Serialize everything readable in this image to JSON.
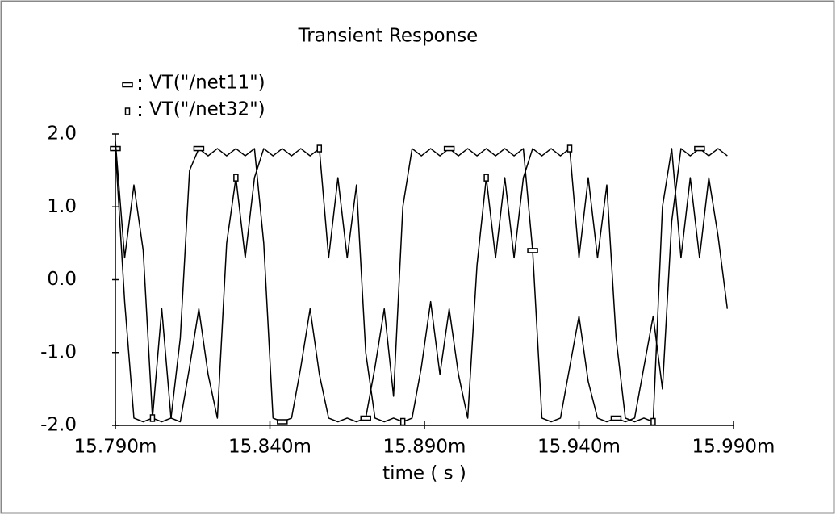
{
  "chart_data": {
    "type": "line",
    "title": "Transient Response",
    "x_label": "time ( s )",
    "x": [
      0.01579,
      0.015793,
      0.015796,
      0.015799,
      0.015802,
      0.015805,
      0.015808,
      0.015811,
      0.015814,
      0.015817,
      0.01582,
      0.015823,
      0.015826,
      0.015829,
      0.015832,
      0.015835,
      0.015838,
      0.015841,
      0.015844,
      0.015847,
      0.01585,
      0.015853,
      0.015856,
      0.015859,
      0.015862,
      0.015865,
      0.015868,
      0.015871,
      0.015874,
      0.015877,
      0.01588,
      0.015883,
      0.015886,
      0.015889,
      0.015892,
      0.015895,
      0.015898,
      0.015901,
      0.015904,
      0.015907,
      0.01591,
      0.015913,
      0.015916,
      0.015919,
      0.015922,
      0.015925,
      0.015928,
      0.015931,
      0.015934,
      0.015937,
      0.01594,
      0.015943,
      0.015946,
      0.015949,
      0.015952,
      0.015955,
      0.015958,
      0.015961,
      0.015964,
      0.015967,
      0.01597,
      0.015973,
      0.015976,
      0.015979,
      0.015982,
      0.015985,
      0.015988
    ],
    "series": [
      {
        "name": "VT(\"/net11\")",
        "color": "#000000",
        "values": [
          1.8,
          -0.3,
          -1.9,
          -1.95,
          -1.9,
          -1.95,
          -1.9,
          -0.8,
          1.5,
          1.8,
          1.7,
          1.8,
          1.7,
          1.8,
          1.7,
          1.8,
          0.5,
          -1.9,
          -1.95,
          -1.9,
          -1.2,
          -0.4,
          -1.3,
          -1.9,
          -1.95,
          -1.9,
          -1.95,
          -1.9,
          -1.2,
          -0.4,
          -1.6,
          1.0,
          1.8,
          1.7,
          1.8,
          1.7,
          1.8,
          1.7,
          1.8,
          1.7,
          1.8,
          1.7,
          1.8,
          1.7,
          1.8,
          0.4,
          -1.9,
          -1.95,
          -1.9,
          -1.2,
          -0.5,
          -1.4,
          -1.9,
          -1.95,
          -1.9,
          -1.95,
          -1.9,
          -1.2,
          -0.5,
          -1.5,
          0.8,
          1.8,
          1.7,
          1.8,
          1.7,
          1.8,
          1.7
        ]
      },
      {
        "name": "VT(\"/net32\")",
        "color": "#000000",
        "values": [
          1.9,
          0.3,
          1.3,
          0.4,
          -1.9,
          -0.4,
          -1.9,
          -1.95,
          -1.2,
          -0.4,
          -1.3,
          -1.9,
          0.5,
          1.4,
          0.3,
          1.4,
          1.8,
          1.7,
          1.8,
          1.7,
          1.8,
          1.7,
          1.8,
          0.3,
          1.4,
          0.3,
          1.3,
          -1.0,
          -1.9,
          -1.95,
          -1.9,
          -1.95,
          -1.9,
          -1.2,
          -0.3,
          -1.3,
          -0.4,
          -1.3,
          -1.9,
          0.2,
          1.4,
          0.3,
          1.4,
          0.3,
          1.4,
          1.8,
          1.7,
          1.8,
          1.7,
          1.8,
          0.3,
          1.4,
          0.3,
          1.3,
          -0.8,
          -1.9,
          -1.95,
          -1.9,
          -1.95,
          1.0,
          1.8,
          0.3,
          1.4,
          0.3,
          1.4,
          0.6,
          -0.4
        ]
      }
    ],
    "xlim": [
      0.01579,
      0.01599
    ],
    "xticks": [
      {
        "value": 0.01579,
        "label": "15.790m"
      },
      {
        "value": 0.01584,
        "label": "15.840m"
      },
      {
        "value": 0.01589,
        "label": "15.890m"
      },
      {
        "value": 0.01594,
        "label": "15.940m"
      },
      {
        "value": 0.01599,
        "label": "15.990m"
      }
    ],
    "ylim": [
      -2,
      2
    ],
    "yticks": [
      {
        "value": 2,
        "label": "2.0"
      },
      {
        "value": 1,
        "label": "1.0"
      },
      {
        "value": 0,
        "label": "0.0"
      },
      {
        "value": -1,
        "label": "-1.0"
      },
      {
        "value": -2,
        "label": "-2.0"
      }
    ],
    "grid": false
  }
}
